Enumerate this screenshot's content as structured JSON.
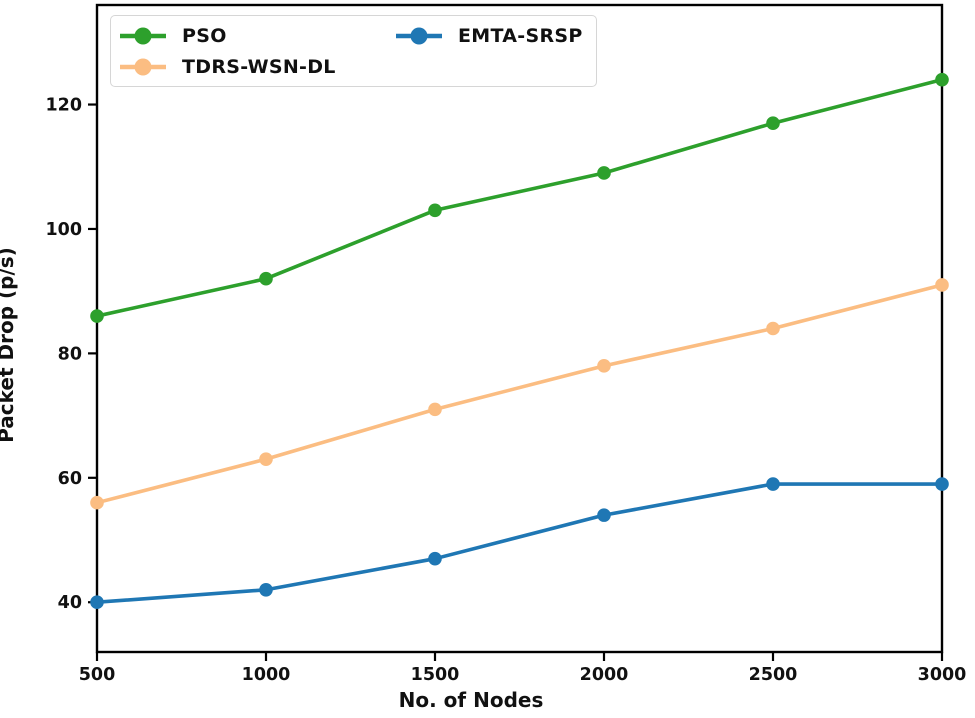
{
  "figure": {
    "background": "#ffffff",
    "text_color": "#111111",
    "spine_color": "#000000"
  },
  "chart_data": {
    "type": "line",
    "title": "",
    "xlabel": "No. of Nodes",
    "ylabel": "Packet Drop (p/s)",
    "x": [
      500,
      1000,
      1500,
      2000,
      2500,
      3000
    ],
    "series": [
      {
        "name": "PSO",
        "color": "#2da02c",
        "values": [
          86,
          92,
          103,
          109,
          117,
          124
        ]
      },
      {
        "name": "TDRS-WSN-DL",
        "color": "#fbbd82",
        "values": [
          56,
          63,
          71,
          78,
          84,
          91
        ]
      },
      {
        "name": "EMTA-SRSP",
        "color": "#1f77b4",
        "values": [
          40,
          42,
          47,
          54,
          59,
          59
        ]
      }
    ],
    "xlim": [
      500,
      3000
    ],
    "ylim": [
      32,
      136
    ],
    "x_ticks": [
      500,
      1000,
      1500,
      2000,
      2500,
      3000
    ],
    "y_ticks": [
      40,
      60,
      80,
      100,
      120
    ],
    "grid": false,
    "legend_position": "top-left",
    "legend_columns": 2
  }
}
